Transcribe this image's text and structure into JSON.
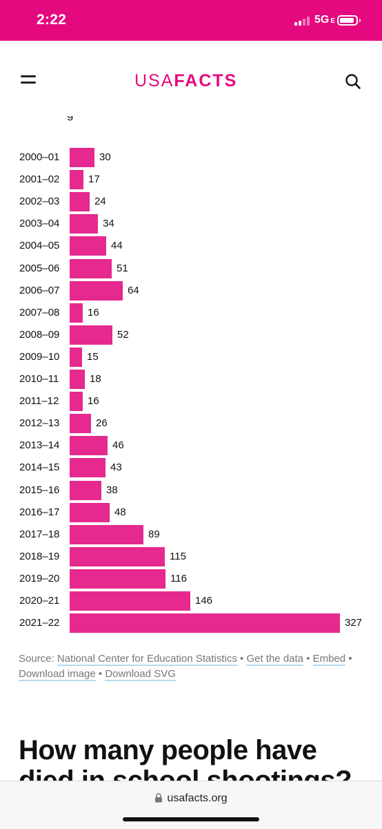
{
  "status_bar": {
    "time": "2:22",
    "network": "5G",
    "network_suffix": "E",
    "background_color": "#e5097f",
    "icons": [
      "signal-icon",
      "battery-icon"
    ],
    "battery_level": 0.9
  },
  "header": {
    "logo_light": "USA",
    "logo_bold": "FACTS",
    "brand_color": "#e5097f",
    "icons": [
      "menu-icon",
      "search-icon"
    ]
  },
  "chart_data": {
    "type": "bar",
    "orientation": "horizontal",
    "bar_color": "#e5298f",
    "categories": [
      "2000–01",
      "2001–02",
      "2002–03",
      "2003–04",
      "2004–05",
      "2005–06",
      "2006–07",
      "2007–08",
      "2008–09",
      "2009–10",
      "2010–11",
      "2011–12",
      "2012–13",
      "2013–14",
      "2014–15",
      "2015–16",
      "2016–17",
      "2017–18",
      "2018–19",
      "2019–20",
      "2020–21",
      "2021–22"
    ],
    "values": [
      30,
      17,
      24,
      34,
      44,
      51,
      64,
      16,
      52,
      15,
      18,
      16,
      26,
      46,
      43,
      38,
      48,
      89,
      115,
      116,
      146,
      327
    ],
    "xlim": [
      0,
      327
    ],
    "grid": false,
    "data_labels": true
  },
  "source": {
    "prefix": "Source:",
    "link_nces": "National Center for Education Statistics",
    "link_get_data": "Get the data",
    "link_embed": "Embed",
    "link_download_image": "Download image",
    "link_download_svg": "Download SVG",
    "separator": "•"
  },
  "heading": {
    "text": "How many people have died in school shootings?"
  },
  "browser": {
    "url": "usafacts.org",
    "icons": [
      "lock-icon"
    ]
  }
}
